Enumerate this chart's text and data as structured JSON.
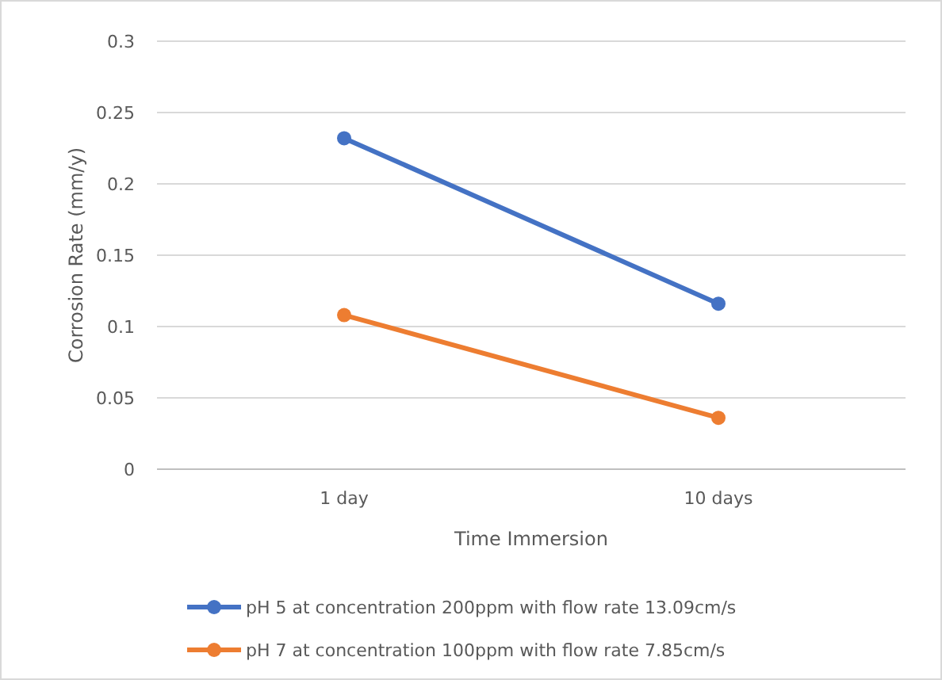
{
  "chart_data": {
    "type": "line",
    "xlabel": "Time Immersion",
    "ylabel": "Corrosion Rate (mm/y)",
    "categories": [
      "1 day",
      "10 days"
    ],
    "series": [
      {
        "name": "pH 5 at concentration 200ppm with flow rate 13.09cm/s",
        "color": "#4472c4",
        "values": [
          0.232,
          0.116
        ]
      },
      {
        "name": "pH 7 at concentration 100ppm with flow rate 7.85cm/s",
        "color": "#ed7d31",
        "values": [
          0.108,
          0.036
        ]
      }
    ],
    "ylim": [
      0,
      0.3
    ],
    "yticks": [
      0,
      0.05,
      0.1,
      0.15,
      0.2,
      0.25,
      0.3
    ],
    "grid": "y",
    "legend": "bottom",
    "marker": "circle",
    "line_style": "solid"
  }
}
